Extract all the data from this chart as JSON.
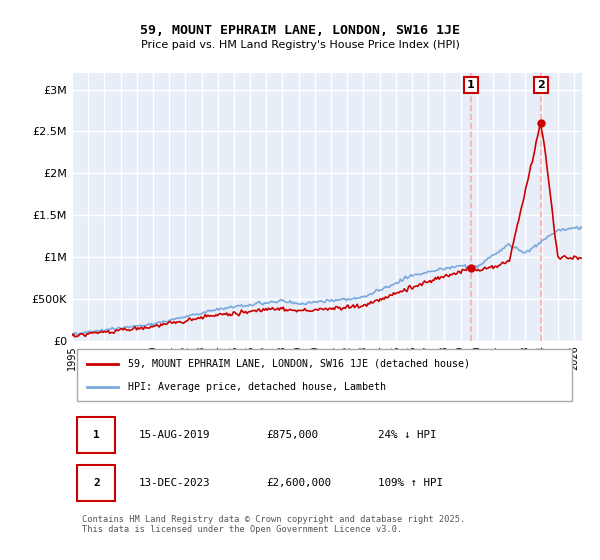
{
  "title": "59, MOUNT EPHRAIM LANE, LONDON, SW16 1JE",
  "subtitle": "Price paid vs. HM Land Registry's House Price Index (HPI)",
  "ylim": [
    0,
    3200000
  ],
  "yticks": [
    0,
    500000,
    1000000,
    1500000,
    2000000,
    2500000,
    3000000
  ],
  "ytick_labels": [
    "£0",
    "£500K",
    "£1M",
    "£1.5M",
    "£2M",
    "£2.5M",
    "£3M"
  ],
  "background_color": "#ffffff",
  "plot_bg_color": "#e8eef8",
  "grid_color": "#ffffff",
  "red_line_color": "#cc0000",
  "blue_line_color": "#7aaadd",
  "dashed_line_color": "#ffaaaa",
  "annotation1_price": 875000,
  "annotation2_price": 2600000,
  "legend_label1": "59, MOUNT EPHRAIM LANE, LONDON, SW16 1JE (detached house)",
  "legend_label2": "HPI: Average price, detached house, Lambeth",
  "table_row1": [
    "1",
    "15-AUG-2019",
    "£875,000",
    "24% ↓ HPI"
  ],
  "table_row2": [
    "2",
    "13-DEC-2023",
    "£2,600,000",
    "109% ↑ HPI"
  ],
  "footer": "Contains HM Land Registry data © Crown copyright and database right 2025.\nThis data is licensed under the Open Government Licence v3.0.",
  "xlim_start": 1995.0,
  "xlim_end": 2026.5,
  "hpi_keypoints_x": [
    1995,
    2000,
    2004,
    2008,
    2009,
    2013,
    2016,
    2019,
    2020,
    2022,
    2023,
    2025,
    2026.5
  ],
  "hpi_keypoints_y": [
    80000,
    200000,
    380000,
    480000,
    440000,
    520000,
    780000,
    900000,
    880000,
    1150000,
    1050000,
    1320000,
    1350000
  ],
  "red_keypoints_x": [
    1995,
    2000,
    2004,
    2008,
    2009,
    2013,
    2016,
    2019.62,
    2020,
    2022,
    2023.95,
    2024.2,
    2025,
    2026.5
  ],
  "red_keypoints_y": [
    65000,
    170000,
    310000,
    390000,
    355000,
    420000,
    640000,
    875000,
    830000,
    950000,
    2600000,
    2300000,
    1000000,
    980000
  ]
}
